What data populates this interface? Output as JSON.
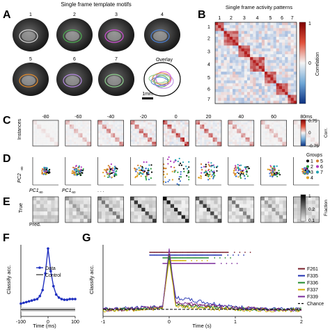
{
  "panels": {
    "A": {
      "letter": "A",
      "title": "Single frame template motifs",
      "motif_labels": [
        "1",
        "2",
        "3",
        "4",
        "5",
        "6",
        "7"
      ],
      "overlay_label": "Overlay",
      "scale_label": "1mm",
      "motif_colors": [
        "#d9d9d9",
        "#4caf50",
        "#d24fd8",
        "#4a7fd4",
        "#e08a2e",
        "#b58adf",
        "#8fd08f"
      ]
    },
    "B": {
      "letter": "B",
      "title": "Single frame activity patterns",
      "top_labels": [
        "1",
        "2",
        "3",
        "4",
        "5",
        "6",
        "7"
      ],
      "side_labels": [
        "1",
        "2",
        "3",
        "4",
        "5",
        "6",
        "7"
      ],
      "colorbar_label": "Correlation",
      "colorbar_ticks": [
        "1",
        "0"
      ]
    },
    "C": {
      "letter": "C",
      "time_labels": [
        "-80",
        "-60",
        "-40",
        "-20",
        "0",
        "20",
        "40",
        "60",
        "80ms"
      ],
      "ylabel": "Instances",
      "colorbar_label": "Corr.",
      "colorbar_ticks": [
        "0.75",
        "0",
        "-0.75"
      ]
    },
    "D": {
      "letter": "D",
      "ylabel": "PC2",
      "ylabel_sub": "-80",
      "xlabels": [
        "PC1",
        "PC1",
        ". . ."
      ],
      "xlabel_subs": [
        "-80",
        "-60",
        ""
      ],
      "legend_title": "Groups",
      "groups": [
        "1",
        "2",
        "3",
        "4",
        "5",
        "6",
        "7"
      ],
      "group_colors": [
        "#000000",
        "#2a9d3a",
        "#3a6fd0",
        "#e0a020",
        "#d27b2a",
        "#b03ac0",
        "#20a0b0"
      ]
    },
    "E": {
      "letter": "E",
      "ylabel": "True",
      "xlabel": "Pred.",
      "colorbar_label": "Fraction",
      "colorbar_ticks": [
        "1",
        "0.2",
        "0.1"
      ]
    },
    "F": {
      "letter": "F",
      "ylabel": "Classify acc.",
      "xlabel": "Time (ms)",
      "xticks": [
        "-100",
        "0",
        "100"
      ],
      "legend": [
        "Data",
        "Control"
      ]
    },
    "G": {
      "letter": "G",
      "ylabel": "Classify acc.",
      "xlabel": "Time (s)",
      "xticks": [
        "-1",
        "0",
        "1",
        "2"
      ],
      "legend": [
        "F261",
        "F335",
        "F336",
        "F337",
        "F339",
        "Chance"
      ],
      "legend_colors": [
        "#7a1f2b",
        "#1f2fb0",
        "#1f8a2a",
        "#d4b000",
        "#7a2a9a",
        "#000000"
      ]
    }
  },
  "chart_data": [
    {
      "type": "line",
      "panel": "F",
      "xlabel": "Time (ms)",
      "ylabel": "Classify acc.",
      "xlim": [
        -100,
        100
      ],
      "series": [
        {
          "name": "Data",
          "x": [
            -100,
            -90,
            -80,
            -70,
            -60,
            -50,
            -40,
            -30,
            -20,
            -10,
            0,
            10,
            20,
            30,
            40,
            50,
            60,
            70,
            80,
            90,
            100
          ],
          "y": [
            0.22,
            0.23,
            0.24,
            0.25,
            0.26,
            0.27,
            0.28,
            0.32,
            0.4,
            0.62,
            0.95,
            0.65,
            0.45,
            0.34,
            0.3,
            0.28,
            0.27,
            0.27,
            0.28,
            0.28,
            0.28
          ]
        },
        {
          "name": "Control",
          "x": [
            -100,
            100
          ],
          "y": [
            0.14,
            0.14
          ]
        }
      ]
    },
    {
      "type": "line",
      "panel": "G",
      "xlabel": "Time (s)",
      "ylabel": "Classify acc.",
      "xlim": [
        -1,
        2
      ],
      "series": [
        {
          "name": "F261",
          "x": [
            -1,
            -0.5,
            -0.1,
            0,
            0.1,
            0.5,
            1,
            1.5,
            2
          ],
          "y": [
            0.14,
            0.15,
            0.17,
            0.88,
            0.22,
            0.19,
            0.16,
            0.15,
            0.14
          ]
        },
        {
          "name": "F335",
          "x": [
            -1,
            -0.5,
            -0.1,
            0,
            0.1,
            0.5,
            1,
            1.5,
            2
          ],
          "y": [
            0.15,
            0.16,
            0.18,
            0.82,
            0.3,
            0.24,
            0.17,
            0.15,
            0.14
          ]
        },
        {
          "name": "F336",
          "x": [
            -1,
            -0.5,
            -0.1,
            0,
            0.1,
            0.5,
            1,
            1.5,
            2
          ],
          "y": [
            0.14,
            0.15,
            0.17,
            0.86,
            0.2,
            0.18,
            0.15,
            0.14,
            0.14
          ]
        },
        {
          "name": "F337",
          "x": [
            -1,
            -0.5,
            -0.1,
            0,
            0.1,
            0.5,
            1,
            1.5,
            2
          ],
          "y": [
            0.13,
            0.14,
            0.16,
            0.8,
            0.18,
            0.16,
            0.14,
            0.13,
            0.13
          ]
        },
        {
          "name": "F339",
          "x": [
            -1,
            -0.5,
            -0.1,
            0,
            0.1,
            0.5,
            1,
            1.5,
            2
          ],
          "y": [
            0.14,
            0.15,
            0.18,
            0.95,
            0.24,
            0.2,
            0.16,
            0.14,
            0.14
          ]
        },
        {
          "name": "Chance",
          "x": [
            -1,
            2
          ],
          "y": [
            0.143,
            0.143
          ]
        }
      ]
    }
  ]
}
